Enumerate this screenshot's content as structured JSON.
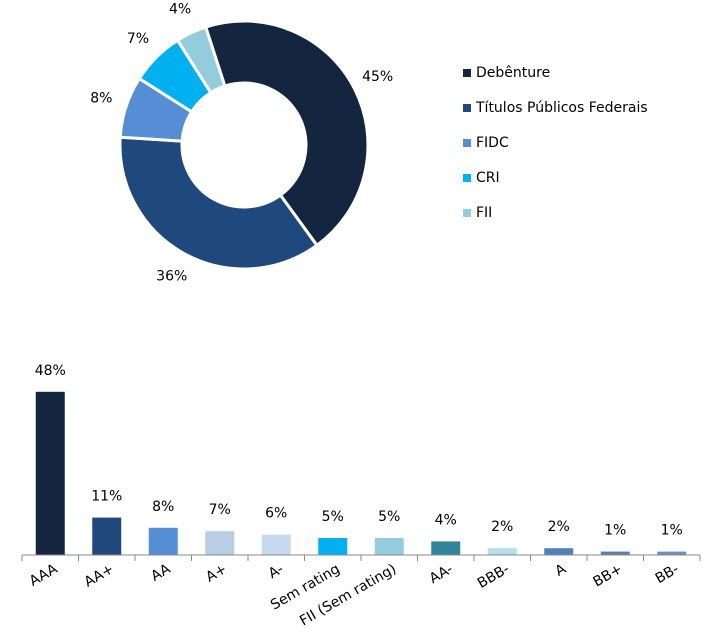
{
  "chart_data": [
    {
      "type": "pie",
      "categories": [
        "Debênture",
        "Títulos Públicos Federais",
        "FIDC",
        "CRI",
        "FII"
      ],
      "values": [
        45,
        36,
        8,
        7,
        4
      ],
      "value_labels": [
        "45%",
        "36%",
        "8%",
        "7%",
        "4%"
      ],
      "colors": [
        "#13253f",
        "#1f497d",
        "#558ed5",
        "#00b0f0",
        "#93cddd"
      ],
      "legend": "right"
    },
    {
      "type": "bar",
      "categories": [
        "AAA",
        "AA+",
        "AA",
        "A+",
        "A-",
        "Sem rating",
        "FII (Sem rating)",
        "AA-",
        "BBB-",
        "A",
        "BB+",
        "BB-"
      ],
      "values": [
        48,
        11,
        8,
        7,
        6,
        5,
        5,
        4,
        2,
        2,
        1,
        1
      ],
      "value_labels": [
        "48%",
        "11%",
        "8%",
        "7%",
        "6%",
        "5%",
        "5%",
        "4%",
        "2%",
        "2%",
        "1%",
        "1%"
      ],
      "colors": [
        "#13253f",
        "#1f497d",
        "#558ed5",
        "#b9cde5",
        "#c6d9f1",
        "#00b0f0",
        "#93cddd",
        "#31849b",
        "#b7dee8",
        "#4f81bd",
        "#5a7fa8",
        "#6c8ebf"
      ],
      "ylim": [
        0,
        50
      ]
    }
  ]
}
